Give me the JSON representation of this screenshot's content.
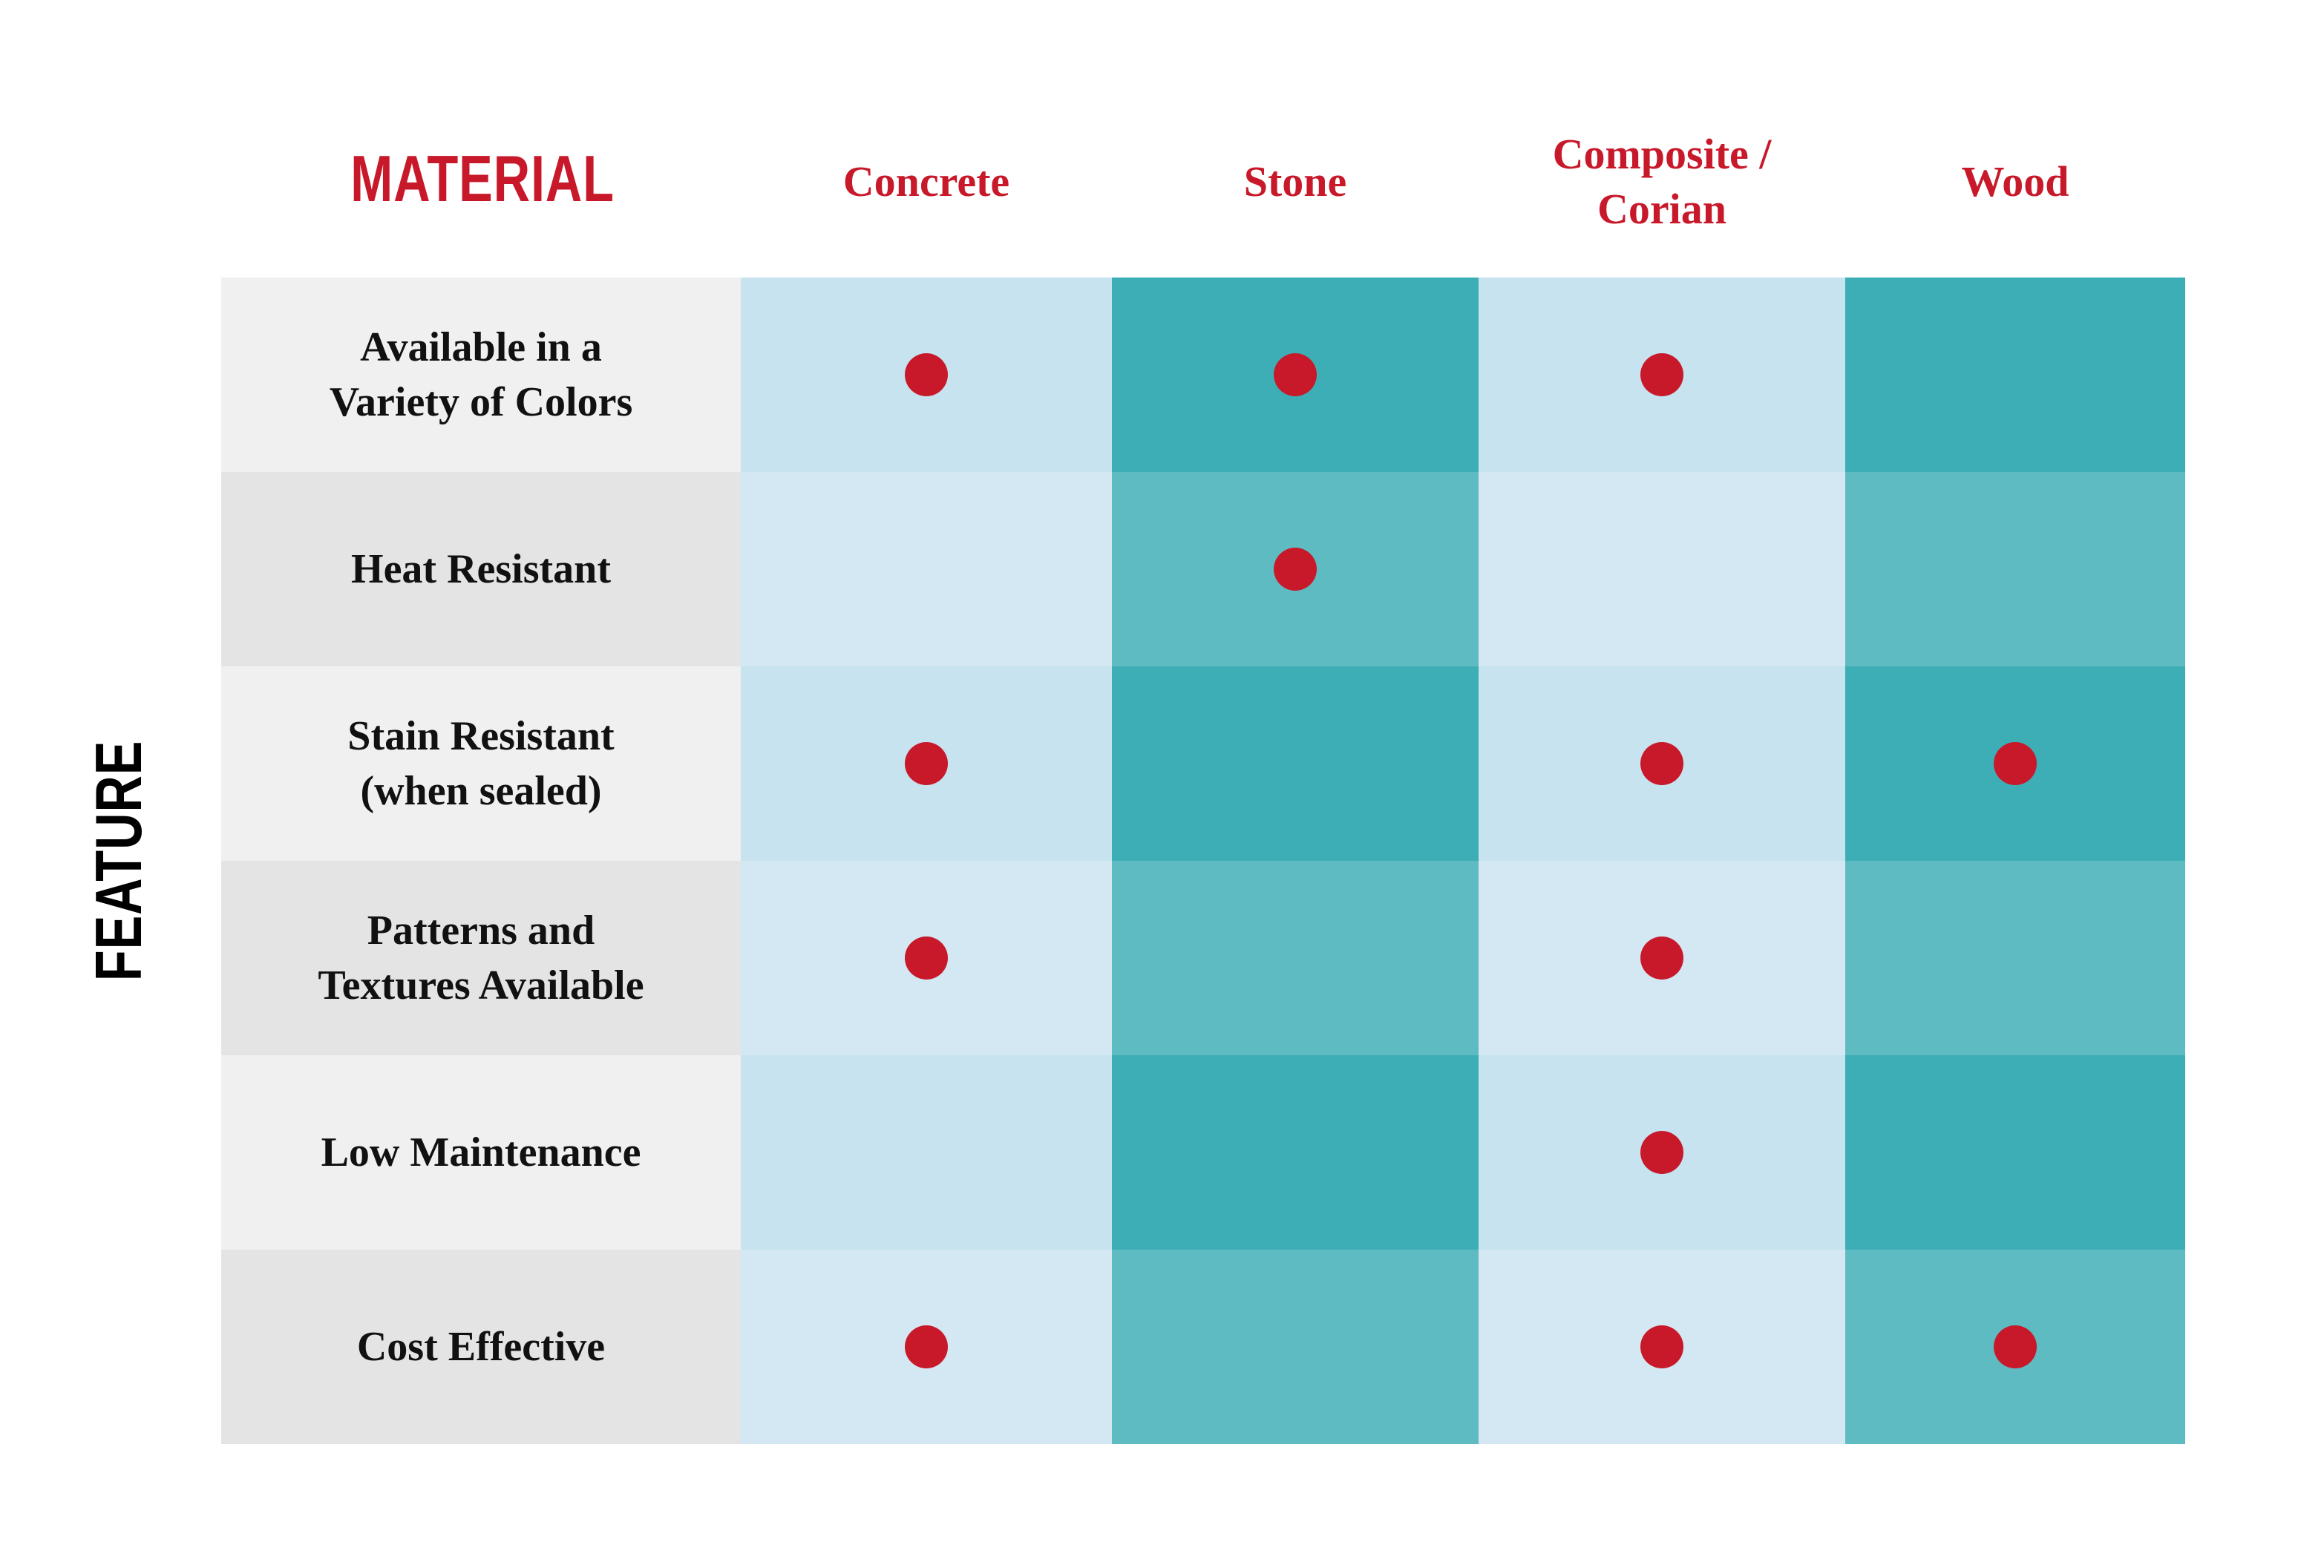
{
  "header": {
    "title": "MATERIAL",
    "side_title": "FEATURE"
  },
  "table": {
    "columns": [
      [
        "Concrete"
      ],
      [
        "Stone"
      ],
      [
        "Composite /",
        "Corian"
      ],
      [
        "Wood"
      ]
    ],
    "rows": [
      {
        "feature": [
          "Available in a",
          "Variety of Colors"
        ],
        "cells": [
          true,
          true,
          true,
          false
        ]
      },
      {
        "feature": [
          "Heat Resistant"
        ],
        "cells": [
          false,
          true,
          false,
          false
        ]
      },
      {
        "feature": [
          "Stain Resistant",
          "(when sealed)"
        ],
        "cells": [
          true,
          false,
          true,
          true
        ]
      },
      {
        "feature": [
          "Patterns and",
          "Textures Available"
        ],
        "cells": [
          true,
          false,
          true,
          false
        ]
      },
      {
        "feature": [
          "Low Maintenance"
        ],
        "cells": [
          false,
          false,
          true,
          false
        ]
      },
      {
        "feature": [
          "Cost Effective"
        ],
        "cells": [
          true,
          false,
          true,
          true
        ]
      }
    ]
  }
}
